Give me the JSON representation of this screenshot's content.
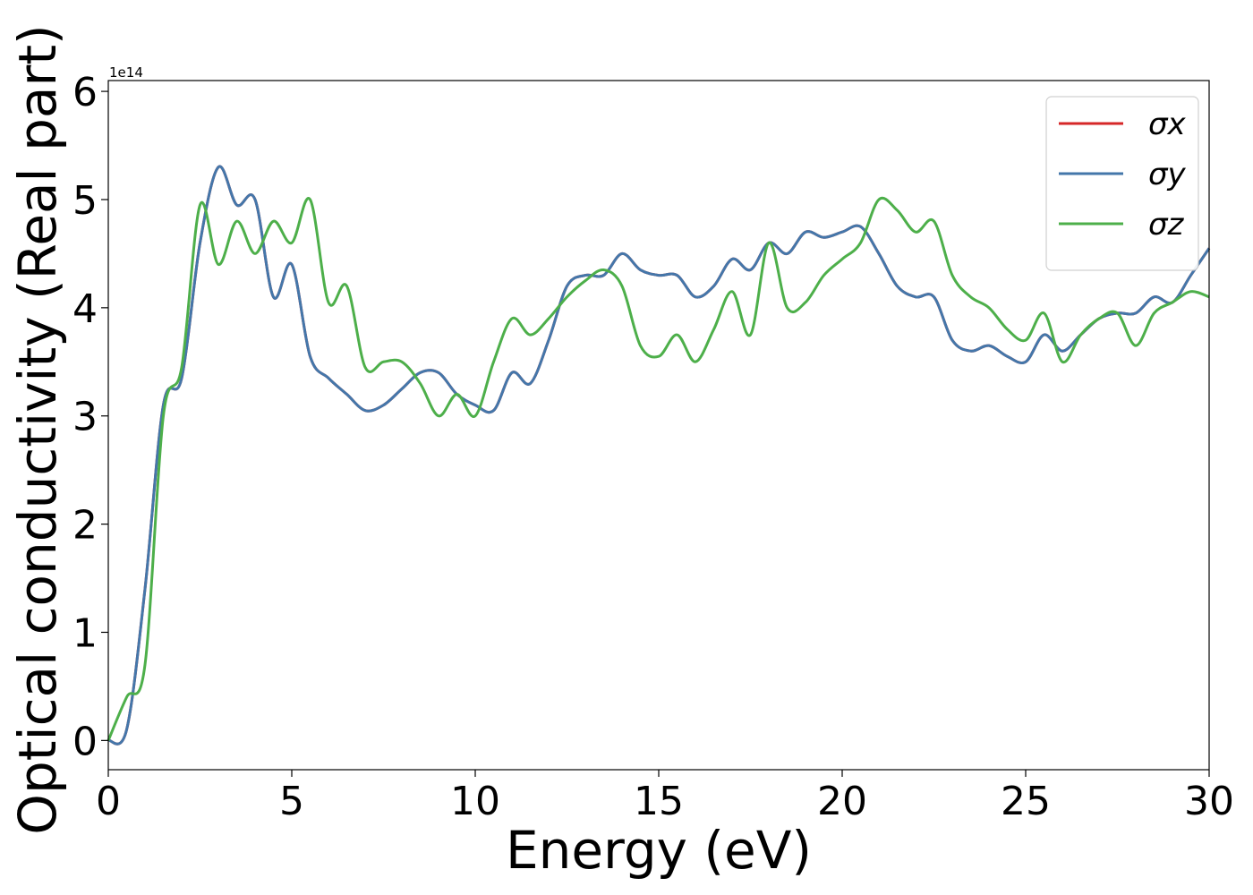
{
  "chart_data": {
    "type": "line",
    "xlabel": "Energy (eV)",
    "ylabel": "Optical conductivity (Real part)",
    "offset_label": "1e14",
    "x": [
      0,
      0.5,
      1,
      1.5,
      2,
      2.5,
      3,
      3.5,
      4,
      4.5,
      5,
      5.5,
      6,
      6.5,
      7,
      7.5,
      8,
      8.5,
      9,
      9.5,
      10,
      10.5,
      11,
      11.5,
      12,
      12.5,
      13,
      13.5,
      14,
      14.5,
      15,
      15.5,
      16,
      16.5,
      17,
      17.5,
      18,
      18.5,
      19,
      19.5,
      20,
      20.5,
      21,
      21.5,
      22,
      22.5,
      23,
      23.5,
      24,
      24.5,
      25,
      25.5,
      26,
      26.5,
      27,
      27.5,
      28,
      28.5,
      29,
      29.5,
      30
    ],
    "series": [
      {
        "name": "σx",
        "color": "#d62728",
        "values": [
          0,
          0.1,
          1.4,
          3.1,
          3.35,
          4.6,
          5.3,
          4.95,
          5.0,
          4.1,
          4.4,
          3.55,
          3.35,
          3.2,
          3.05,
          3.1,
          3.25,
          3.4,
          3.4,
          3.2,
          3.1,
          3.05,
          3.4,
          3.3,
          3.7,
          4.2,
          4.3,
          4.3,
          4.5,
          4.35,
          4.3,
          4.3,
          4.1,
          4.2,
          4.45,
          4.35,
          4.6,
          4.5,
          4.7,
          4.65,
          4.7,
          4.75,
          4.5,
          4.2,
          4.1,
          4.1,
          3.7,
          3.6,
          3.65,
          3.55,
          3.5,
          3.75,
          3.6,
          3.75,
          3.9,
          3.95,
          3.95,
          4.1,
          4.05,
          4.3,
          4.55
        ]
      },
      {
        "name": "σy",
        "color": "#4477aa",
        "values": [
          0,
          0.1,
          1.4,
          3.1,
          3.35,
          4.6,
          5.3,
          4.95,
          5.0,
          4.1,
          4.4,
          3.55,
          3.35,
          3.2,
          3.05,
          3.1,
          3.25,
          3.4,
          3.4,
          3.2,
          3.1,
          3.05,
          3.4,
          3.3,
          3.7,
          4.2,
          4.3,
          4.3,
          4.5,
          4.35,
          4.3,
          4.3,
          4.1,
          4.2,
          4.45,
          4.35,
          4.6,
          4.5,
          4.7,
          4.65,
          4.7,
          4.75,
          4.5,
          4.2,
          4.1,
          4.1,
          3.7,
          3.6,
          3.65,
          3.55,
          3.5,
          3.75,
          3.6,
          3.75,
          3.9,
          3.95,
          3.95,
          4.1,
          4.05,
          4.3,
          4.55
        ]
      },
      {
        "name": "σz",
        "color": "#4daf4a",
        "values": [
          0,
          0.4,
          0.7,
          3.0,
          3.45,
          4.95,
          4.4,
          4.8,
          4.5,
          4.8,
          4.6,
          5.0,
          4.05,
          4.2,
          3.45,
          3.5,
          3.5,
          3.3,
          3.0,
          3.2,
          3.0,
          3.5,
          3.9,
          3.75,
          3.9,
          4.1,
          4.25,
          4.35,
          4.2,
          3.65,
          3.55,
          3.75,
          3.5,
          3.8,
          4.15,
          3.75,
          4.6,
          4.0,
          4.05,
          4.3,
          4.45,
          4.6,
          5.0,
          4.9,
          4.7,
          4.8,
          4.3,
          4.1,
          4.0,
          3.8,
          3.7,
          3.95,
          3.5,
          3.75,
          3.9,
          3.95,
          3.65,
          3.95,
          4.05,
          4.15,
          4.1
        ]
      }
    ],
    "xlim": [
      0,
      30
    ],
    "xticks": [
      0,
      5,
      10,
      15,
      20,
      25,
      30
    ],
    "ylim": [
      -0.27,
      6.1
    ],
    "yticks": [
      0,
      1,
      2,
      3,
      4,
      5,
      6
    ],
    "grid": false,
    "legend": "upper right"
  }
}
